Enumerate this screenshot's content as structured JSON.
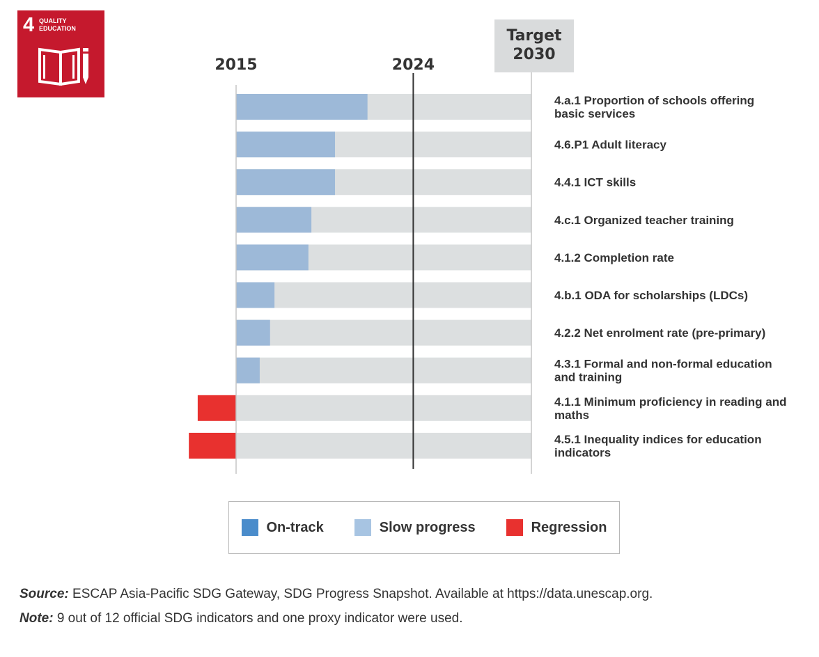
{
  "badge": {
    "number": "4",
    "title_line1": "QUALITY",
    "title_line2": "EDUCATION",
    "color": "#c5192d"
  },
  "chart_data": {
    "type": "bar",
    "orientation": "horizontal",
    "axis_markers": [
      "2015",
      "2024"
    ],
    "target_label_line1": "Target",
    "target_label_line2": "2030",
    "xlim": [
      -0.16,
      1.0
    ],
    "marker_positions": [
      0,
      0.6,
      1.0
    ],
    "categories": [
      "4.a.1 Proportion of schools offering basic services",
      "4.6.P1 Adult literacy",
      "4.4.1 ICT skills",
      "4.c.1 Organized teacher training",
      "4.1.2 Completion rate",
      "4.b.1 ODA for scholarships (LDCs)",
      "4.2.2 Net enrolment rate (pre-primary)",
      "4.3.1 Formal and non-formal education and training",
      "4.1.1 Minimum proficiency in reading and maths",
      "4.5.1 Inequality indices for education indicators"
    ],
    "label_lines": [
      [
        "4.a.1 Proportion of schools offering",
        "basic services"
      ],
      [
        "4.6.P1 Adult literacy"
      ],
      [
        "4.4.1 ICT skills"
      ],
      [
        "4.c.1 Organized teacher training"
      ],
      [
        "4.1.2 Completion rate"
      ],
      [
        "4.b.1 ODA for scholarships (LDCs)"
      ],
      [
        "4.2.2 Net enrolment rate (pre-primary)"
      ],
      [
        "4.3.1 Formal and non-formal education",
        "and training"
      ],
      [
        "4.1.1 Minimum proficiency in reading and",
        "maths"
      ],
      [
        "4.5.1 Inequality indices for education",
        "indicators"
      ]
    ],
    "values": [
      0.445,
      0.335,
      0.335,
      0.255,
      0.245,
      0.13,
      0.115,
      0.08,
      -0.13,
      -0.16
    ],
    "status": [
      "Slow progress",
      "Slow progress",
      "Slow progress",
      "Slow progress",
      "Slow progress",
      "Slow progress",
      "Slow progress",
      "Slow progress",
      "Regression",
      "Regression"
    ],
    "legend": [
      {
        "label": "On-track",
        "color": "#4a8ccb"
      },
      {
        "label": "Slow progress",
        "color": "#a7c4e2"
      },
      {
        "label": "Regression",
        "color": "#e8312f"
      }
    ],
    "colors": {
      "slow_bar": "#9db9d8",
      "regression_bar": "#e8312f",
      "track": "#dcdfe0",
      "axis_2015": "#c5c5c5",
      "axis_2024": "#333333",
      "axis_target": "#c5c5c5"
    }
  },
  "footnotes": {
    "source_label": "Source:",
    "source_text": " ESCAP Asia-Pacific SDG Gateway, SDG Progress Snapshot. Available at https://data.unescap.org.",
    "note_label": "Note:",
    "note_text": " 9 out of 12 official SDG indicators and one proxy indicator were used."
  }
}
